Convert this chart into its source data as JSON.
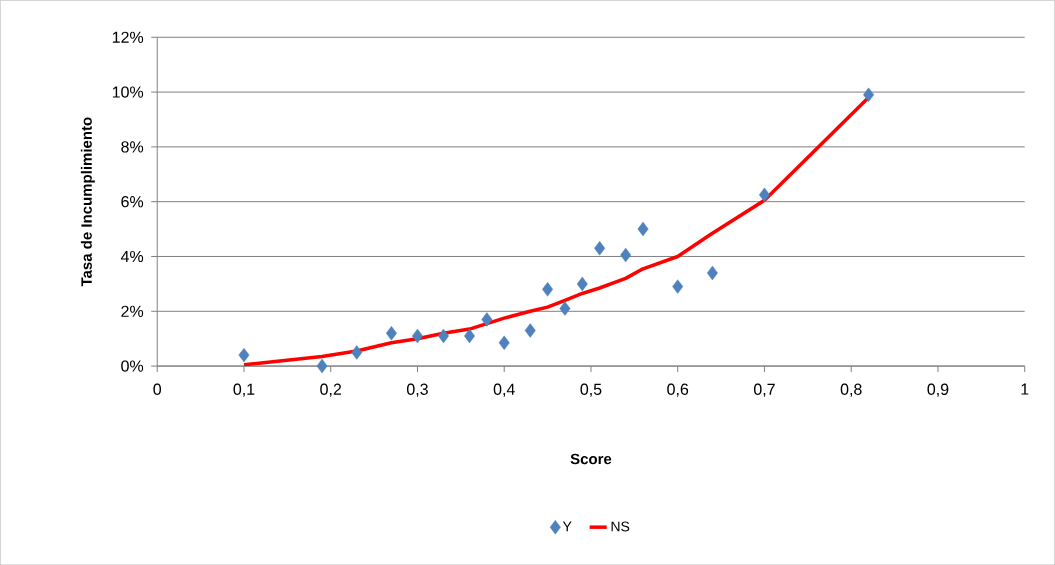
{
  "chart_data": {
    "type": "scatter",
    "xlabel": "Score",
    "ylabel": "Tasa de Incumplimiento",
    "x": [
      0.1,
      0.19,
      0.23,
      0.27,
      0.3,
      0.33,
      0.36,
      0.38,
      0.4,
      0.43,
      0.45,
      0.47,
      0.49,
      0.51,
      0.54,
      0.56,
      0.6,
      0.64,
      0.7,
      0.82
    ],
    "series": [
      {
        "name": "Y",
        "color": "#4f81bd",
        "marker": "diamond",
        "values": [
          0.4,
          0.0,
          0.5,
          1.2,
          1.1,
          1.1,
          1.1,
          1.7,
          0.85,
          1.3,
          2.8,
          2.1,
          3.0,
          4.3,
          4.05,
          5.0,
          2.9,
          3.4,
          6.25,
          9.9
        ]
      },
      {
        "name": "NS",
        "type": "line",
        "color": "#ff0000",
        "marker": "none",
        "line_style": "solid",
        "values": [
          0.05,
          0.35,
          0.55,
          0.85,
          1.0,
          1.2,
          1.35,
          1.55,
          1.75,
          2.0,
          2.15,
          2.4,
          2.65,
          2.85,
          3.2,
          3.55,
          4.0,
          4.85,
          6.05,
          9.8
        ]
      }
    ],
    "xlim": [
      0,
      1
    ],
    "xticks": [
      {
        "value": 0,
        "label": "0"
      },
      {
        "value": 0.1,
        "label": "0,1"
      },
      {
        "value": 0.2,
        "label": "0,2"
      },
      {
        "value": 0.3,
        "label": "0,3"
      },
      {
        "value": 0.4,
        "label": "0,4"
      },
      {
        "value": 0.5,
        "label": "0,5"
      },
      {
        "value": 0.6,
        "label": "0,6"
      },
      {
        "value": 0.7,
        "label": "0,7"
      },
      {
        "value": 0.8,
        "label": "0,8"
      },
      {
        "value": 0.9,
        "label": "0,9"
      },
      {
        "value": 1,
        "label": "1"
      }
    ],
    "ylim": [
      0,
      12
    ],
    "yticks": [
      {
        "value": 0,
        "label": "0%"
      },
      {
        "value": 2,
        "label": "2%"
      },
      {
        "value": 4,
        "label": "4%"
      },
      {
        "value": 6,
        "label": "6%"
      },
      {
        "value": 8,
        "label": "8%"
      },
      {
        "value": 10,
        "label": "10%"
      },
      {
        "value": 12,
        "label": "12%"
      }
    ],
    "grid": "y",
    "legend": "bottom"
  }
}
